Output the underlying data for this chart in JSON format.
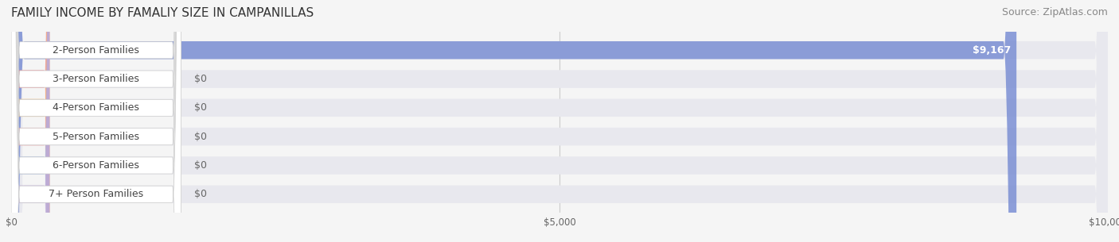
{
  "title": "FAMILY INCOME BY FAMALIY SIZE IN CAMPANILLAS",
  "source": "Source: ZipAtlas.com",
  "categories": [
    "2-Person Families",
    "3-Person Families",
    "4-Person Families",
    "5-Person Families",
    "6-Person Families",
    "7+ Person Families"
  ],
  "values": [
    9167,
    0,
    0,
    0,
    0,
    0
  ],
  "bar_colors": [
    "#7b8fd4",
    "#f08080",
    "#f4c07a",
    "#f0a0a0",
    "#a0b8e0",
    "#c0a8d8"
  ],
  "label_bg_colors": [
    "#7b8fd4",
    "#f08080",
    "#f4c07a",
    "#f0a0a0",
    "#a0b8e0",
    "#c0a8d8"
  ],
  "xlim": [
    0,
    10000
  ],
  "xticks": [
    0,
    5000,
    10000
  ],
  "xtick_labels": [
    "$0",
    "$5,000",
    "$10,000"
  ],
  "value_labels": [
    "$9,167",
    "$0",
    "$0",
    "$0",
    "$0",
    "$0"
  ],
  "background_color": "#f5f5f5",
  "bar_background_color": "#e8e8ee",
  "title_fontsize": 11,
  "source_fontsize": 9,
  "label_fontsize": 9,
  "value_fontsize": 9
}
